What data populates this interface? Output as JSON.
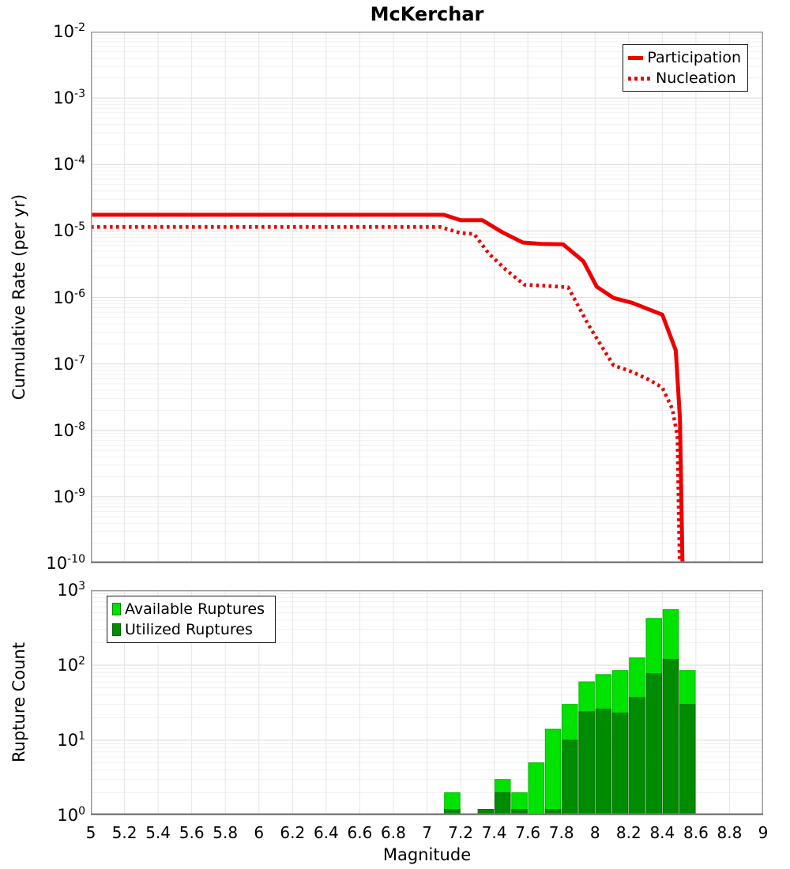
{
  "title": "McKerchar",
  "chart_data": [
    {
      "type": "line",
      "title": "McKerchar",
      "ylabel": "Cumulative Rate (per yr)",
      "xlabel": "",
      "xlim": [
        5,
        9
      ],
      "x_tick_step": 0.2,
      "y_scale": "log",
      "y_tick_exponents": [
        -2,
        -3,
        -4,
        -5,
        -6,
        -7,
        -8,
        -9,
        -10
      ],
      "grid": true,
      "legend_position": "top-right",
      "line_color": "#ee0000",
      "legend": [
        {
          "label": "Participation",
          "style": "solid"
        },
        {
          "label": "Nucleation",
          "style": "dotted"
        }
      ],
      "series": [
        {
          "name": "Participation",
          "color": "#ee0000",
          "line": "solid",
          "points": [
            [
              5.0,
              1.75e-05
            ],
            [
              7.1,
              1.75e-05
            ],
            [
              7.2,
              1.45e-05
            ],
            [
              7.33,
              1.45e-05
            ],
            [
              7.45,
              9.5e-06
            ],
            [
              7.57,
              6.7e-06
            ],
            [
              7.68,
              6.4e-06
            ],
            [
              7.81,
              6.3e-06
            ],
            [
              7.93,
              3.5e-06
            ],
            [
              8.01,
              1.45e-06
            ],
            [
              8.11,
              9.8e-07
            ],
            [
              8.22,
              8.3e-07
            ],
            [
              8.4,
              5.5e-07
            ],
            [
              8.48,
              1.6e-07
            ],
            [
              8.505,
              1.5e-08
            ],
            [
              8.52,
              1e-10
            ]
          ]
        },
        {
          "name": "Nucleation",
          "color": "#ee0000",
          "line": "dotted",
          "points": [
            [
              5.0,
              1.15e-05
            ],
            [
              7.08,
              1.15e-05
            ],
            [
              7.2,
              9.3e-06
            ],
            [
              7.28,
              9e-06
            ],
            [
              7.37,
              4.5e-06
            ],
            [
              7.47,
              2.6e-06
            ],
            [
              7.58,
              1.55e-06
            ],
            [
              7.7,
              1.5e-06
            ],
            [
              7.84,
              1.42e-06
            ],
            [
              7.96,
              3.9e-07
            ],
            [
              8.02,
              2.2e-07
            ],
            [
              8.11,
              9.5e-08
            ],
            [
              8.22,
              7.6e-08
            ],
            [
              8.32,
              5.8e-08
            ],
            [
              8.4,
              4.4e-08
            ],
            [
              8.46,
              2.1e-08
            ],
            [
              8.49,
              8e-09
            ],
            [
              8.503,
              1e-10
            ]
          ]
        }
      ]
    },
    {
      "type": "bar",
      "ylabel": "Rupture Count",
      "xlabel": "Magnitude",
      "xlim": [
        5,
        9
      ],
      "x_ticks": [
        5,
        5.2,
        5.4,
        5.6,
        5.8,
        6,
        6.2,
        6.4,
        6.6,
        6.8,
        7,
        7.2,
        7.4,
        7.6,
        7.8,
        8,
        8.2,
        8.4,
        8.6,
        8.8,
        9
      ],
      "y_scale": "log",
      "y_tick_exponents": [
        3,
        2,
        1,
        0
      ],
      "grid": true,
      "legend_position": "top-left",
      "bin_width": 0.1,
      "bins": [
        7.1,
        7.3,
        7.4,
        7.5,
        7.6,
        7.7,
        7.8,
        7.9,
        8.0,
        8.1,
        8.2,
        8.3,
        8.4,
        8.5
      ],
      "series": [
        {
          "name": "Available Ruptures",
          "color": "#00e300",
          "values": [
            2,
            1,
            3,
            2,
            5,
            14,
            30,
            60,
            75,
            85,
            125,
            420,
            550,
            85
          ]
        },
        {
          "name": "Utilized Ruptures",
          "color": "#008c00",
          "values": [
            1,
            1,
            2,
            1,
            0,
            1,
            10,
            24,
            26,
            23,
            37,
            77,
            120,
            30
          ]
        }
      ],
      "legend": [
        {
          "label": "Available Ruptures",
          "color": "#00e300"
        },
        {
          "label": "Utilized Ruptures",
          "color": "#008c00"
        }
      ]
    }
  ],
  "colors": {
    "grid_major": "#e1e1e1",
    "grid_minor": "#f0f0f0",
    "grid_vertical": "#e6e6e6",
    "border": "#9c9c9c",
    "bottom_spine": "#7e7e7e",
    "available_stroke": "#00b800",
    "utilized_stroke": "#006e00"
  }
}
